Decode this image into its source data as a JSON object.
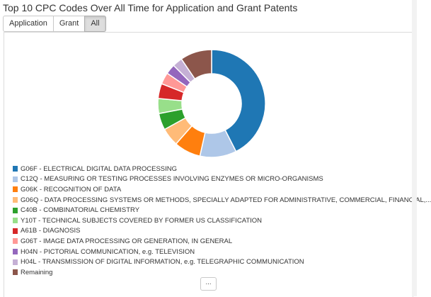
{
  "title": "Top 10 CPC Codes Over All Time for Application and Grant Patents",
  "tabs": [
    {
      "label": "Application",
      "active": false
    },
    {
      "label": "Grant",
      "active": false
    },
    {
      "label": "All",
      "active": true
    }
  ],
  "more_label": "...",
  "chart_data": {
    "type": "pie",
    "donut": true,
    "legend_position": "bottom",
    "series": [
      {
        "name": "G06F - ELECTRICAL DIGITAL DATA PROCESSING",
        "value": 42.5,
        "color": "#1f77b4"
      },
      {
        "name": "C12Q - MEASURING OR TESTING PROCESSES INVOLVING ENZYMES OR MICRO-ORGANISMS",
        "value": 11.0,
        "color": "#aec7e8"
      },
      {
        "name": "G06K - RECOGNITION OF DATA",
        "value": 8.0,
        "color": "#ff7f0e"
      },
      {
        "name": "G06Q - DATA PROCESSING SYSTEMS OR METHODS, SPECIALLY ADAPTED FOR ADMINISTRATIVE, COMMERCIAL, FINANCIAL,...",
        "value": 5.5,
        "color": "#ffbb78"
      },
      {
        "name": "C40B - COMBINATORIAL CHEMISTRY",
        "value": 5.0,
        "color": "#2ca02c"
      },
      {
        "name": "Y10T - TECHNICAL SUBJECTS COVERED BY FORMER US CLASSIFICATION",
        "value": 4.5,
        "color": "#98df8a"
      },
      {
        "name": "A61B - DIAGNOSIS",
        "value": 4.5,
        "color": "#d62728"
      },
      {
        "name": "G06T - IMAGE DATA PROCESSING OR GENERATION, IN GENERAL",
        "value": 3.5,
        "color": "#ff9896"
      },
      {
        "name": "H04N - PICTORIAL COMMUNICATION, e.g. TELEVISION",
        "value": 3.0,
        "color": "#9467bd"
      },
      {
        "name": "H04L - TRANSMISSION OF DIGITAL INFORMATION, e.g. TELEGRAPHIC COMMUNICATION",
        "value": 3.0,
        "color": "#c5b0d5"
      },
      {
        "name": "Remaining",
        "value": 9.5,
        "color": "#8c564b"
      }
    ]
  }
}
